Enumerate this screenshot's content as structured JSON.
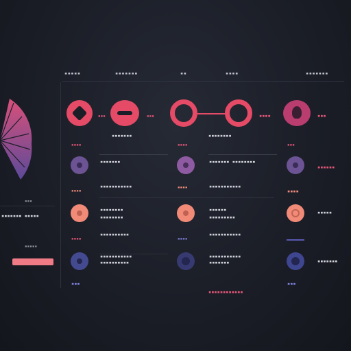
{
  "header": {
    "columns": [
      "▪▪▪▪▪",
      "▪▪▪▪▪▪▪",
      "▪▪",
      "▪▪▪▪",
      "▪▪▪▪▪▪▪"
    ]
  },
  "sidebar": {
    "label_1": "▪▪▪",
    "label_2": "▪▪▪▪▪▪▪ ▪▪▪▪▪",
    "label_3": "▪▪▪▪▪",
    "action_button_label": "▪▪▪▪▪▪"
  },
  "top_row": {
    "small_badge_left": "▪▪▪",
    "small_badge_mid": "▪▪▪",
    "tag_1": "▪▪▪▪",
    "tag_2": "▪▪▪",
    "caption_1": "▪▪▪▪▪▪▪",
    "caption_2": "▪▪▪▪▪▪▪▪"
  },
  "rows": [
    {
      "left_tag": "▪▪▪▪",
      "name": "▪▪▪▪▪▪▪",
      "mid_tag": "▪▪▪▪",
      "detail": "▪▪▪▪▪▪▪ ▪▪▪▪▪▪▪▪",
      "right_tag": "▪▪▪",
      "right_text": "▪▪▪▪▪▪"
    },
    {
      "left_tag": "▪▪▪▪",
      "name": "▪▪▪▪▪▪▪▪▪▪▪",
      "mid_tag": "▪▪▪▪",
      "detail": "▪▪▪▪▪▪▪▪▪▪▪",
      "right_tag": "▪▪▪▪",
      "right_text": "▪▪▪▪▪"
    },
    {
      "left_tag": "▪▪▪▪",
      "name": "▪▪▪▪▪▪▪▪▪▪",
      "mid_tag": "▪▪▪▪",
      "detail": "▪▪▪▪▪▪▪▪▪▪▪",
      "right_tag": "▪▪▪▪",
      "right_text": "▪▪▪▪▪"
    },
    {
      "left_tag": "▪▪▪▪",
      "name": "▪▪▪▪▪▪▪▪▪▪▪",
      "mid_tag": "▪▪▪▪",
      "detail": "▪▪▪▪▪▪▪▪▪▪▪",
      "right_tag": "▪▪▪▪",
      "right_text": "▪▪▪▪▪▪▪"
    }
  ],
  "footer": {
    "left_tag": "▪▪▪",
    "mid_bar": "▪▪▪▪▪▪▪▪▪▪▪▪",
    "right_tag": "▪▪▪"
  },
  "colors": {
    "accent_pink": "#e54a66",
    "accent_purple": "#7a5aa8",
    "accent_salmon": "#f28a78",
    "accent_blue": "#4a4f96",
    "background": "#1b1e27"
  }
}
